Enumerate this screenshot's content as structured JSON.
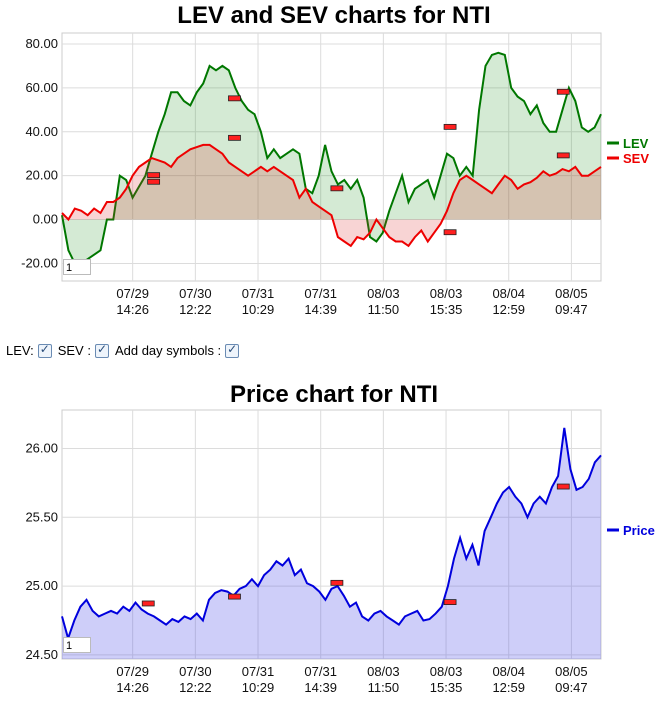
{
  "chart_data": [
    {
      "type": "line",
      "title": "LEV and SEV charts for NTI",
      "ylim": [
        -28,
        85
      ],
      "yticks": [
        "80.00",
        "60.00",
        "40.00",
        "20.00",
        "0.00",
        "-20.00"
      ],
      "ytick_values": [
        80,
        60,
        40,
        20,
        0,
        -20
      ],
      "xticks": [
        [
          "07/29",
          "14:26"
        ],
        [
          "07/30",
          "12:22"
        ],
        [
          "07/31",
          "10:29"
        ],
        [
          "07/31",
          "14:39"
        ],
        [
          "08/03",
          "11:50"
        ],
        [
          "08/03",
          "15:35"
        ],
        [
          "08/04",
          "12:59"
        ],
        [
          "08/05",
          "09:47"
        ]
      ],
      "grid": true,
      "legend_position": "right",
      "series": [
        {
          "name": "LEV",
          "color": "#007700",
          "values": [
            2,
            -14,
            -20,
            -20,
            -18,
            -16,
            -14,
            0,
            0,
            20,
            18,
            10,
            15,
            20,
            30,
            40,
            48,
            58,
            58,
            54,
            52,
            58,
            62,
            70,
            68,
            70,
            68,
            60,
            54,
            50,
            48,
            40,
            28,
            32,
            28,
            30,
            32,
            30,
            14,
            12,
            20,
            34,
            22,
            16,
            18,
            14,
            18,
            10,
            -8,
            -10,
            -6,
            4,
            12,
            20,
            8,
            14,
            16,
            18,
            10,
            20,
            30,
            28,
            20,
            24,
            20,
            50,
            70,
            75,
            76,
            75,
            60,
            56,
            54,
            48,
            52,
            44,
            40,
            40,
            50,
            60,
            54,
            42,
            40,
            42,
            48
          ]
        },
        {
          "name": "SEV",
          "color": "#ee0000",
          "values": [
            3,
            0,
            5,
            4,
            2,
            5,
            3,
            8,
            8,
            10,
            14,
            20,
            24,
            26,
            28,
            27,
            26,
            24,
            28,
            30,
            32,
            33,
            34,
            34,
            32,
            30,
            26,
            24,
            22,
            20,
            22,
            24,
            22,
            24,
            22,
            20,
            18,
            10,
            14,
            8,
            6,
            4,
            2,
            -8,
            -10,
            -12,
            -8,
            -9,
            -6,
            0,
            -4,
            -8,
            -10,
            -10,
            -12,
            -8,
            -5,
            -10,
            -6,
            -2,
            4,
            12,
            18,
            20,
            18,
            16,
            14,
            12,
            16,
            20,
            18,
            14,
            16,
            17,
            19,
            22,
            20,
            21,
            23,
            22,
            24,
            20,
            20,
            22,
            24
          ]
        }
      ],
      "markers": [
        {
          "x": 0.17,
          "y": 20
        },
        {
          "x": 0.17,
          "y": 17
        },
        {
          "x": 0.32,
          "y": 55
        },
        {
          "x": 0.32,
          "y": 37
        },
        {
          "x": 0.51,
          "y": 14
        },
        {
          "x": 0.72,
          "y": 42
        },
        {
          "x": 0.72,
          "y": -6
        },
        {
          "x": 0.93,
          "y": 58
        },
        {
          "x": 0.93,
          "y": 29
        }
      ]
    },
    {
      "type": "area",
      "title": "Price chart for NTI",
      "ylim": [
        24.47,
        26.28
      ],
      "yticks": [
        "26.00",
        "25.50",
        "25.00",
        "24.50"
      ],
      "ytick_values": [
        26.0,
        25.5,
        25.0,
        24.5
      ],
      "xticks": [
        [
          "07/29",
          "14:26"
        ],
        [
          "07/30",
          "12:22"
        ],
        [
          "07/31",
          "10:29"
        ],
        [
          "07/31",
          "14:39"
        ],
        [
          "08/03",
          "11:50"
        ],
        [
          "08/03",
          "15:35"
        ],
        [
          "08/04",
          "12:59"
        ],
        [
          "08/05",
          "09:47"
        ]
      ],
      "grid": true,
      "legend_position": "right",
      "series": [
        {
          "name": "Price",
          "color": "#0000dd",
          "values": [
            24.78,
            24.62,
            24.75,
            24.85,
            24.9,
            24.82,
            24.78,
            24.8,
            24.82,
            24.8,
            24.85,
            24.82,
            24.88,
            24.83,
            24.8,
            24.78,
            24.75,
            24.72,
            24.76,
            24.74,
            24.78,
            24.76,
            24.8,
            24.75,
            24.9,
            24.95,
            24.97,
            24.96,
            24.93,
            24.98,
            25.0,
            25.05,
            25.0,
            25.08,
            25.12,
            25.18,
            25.15,
            25.2,
            25.08,
            25.12,
            25.02,
            25.0,
            24.96,
            24.9,
            24.98,
            25.0,
            24.93,
            24.85,
            24.88,
            24.78,
            24.75,
            24.8,
            24.82,
            24.78,
            24.75,
            24.72,
            24.78,
            24.8,
            24.82,
            24.75,
            24.76,
            24.8,
            24.85,
            25.0,
            25.2,
            25.35,
            25.2,
            25.3,
            25.15,
            25.4,
            25.5,
            25.6,
            25.68,
            25.72,
            25.65,
            25.6,
            25.5,
            25.6,
            25.65,
            25.6,
            25.72,
            25.8,
            26.15,
            25.85,
            25.7,
            25.72,
            25.78,
            25.9,
            25.95
          ]
        }
      ],
      "markers": [
        {
          "x": 0.16,
          "y": 24.87
        },
        {
          "x": 0.32,
          "y": 24.92
        },
        {
          "x": 0.51,
          "y": 25.02
        },
        {
          "x": 0.72,
          "y": 24.88
        },
        {
          "x": 0.93,
          "y": 25.72
        }
      ]
    }
  ],
  "controls": {
    "lev_label": "LEV:",
    "sev_label": "SEV :",
    "day_symbols_label": "Add day symbols :"
  },
  "lev_chart": {
    "box_value": "1"
  },
  "price_chart": {
    "box_value": "1"
  }
}
